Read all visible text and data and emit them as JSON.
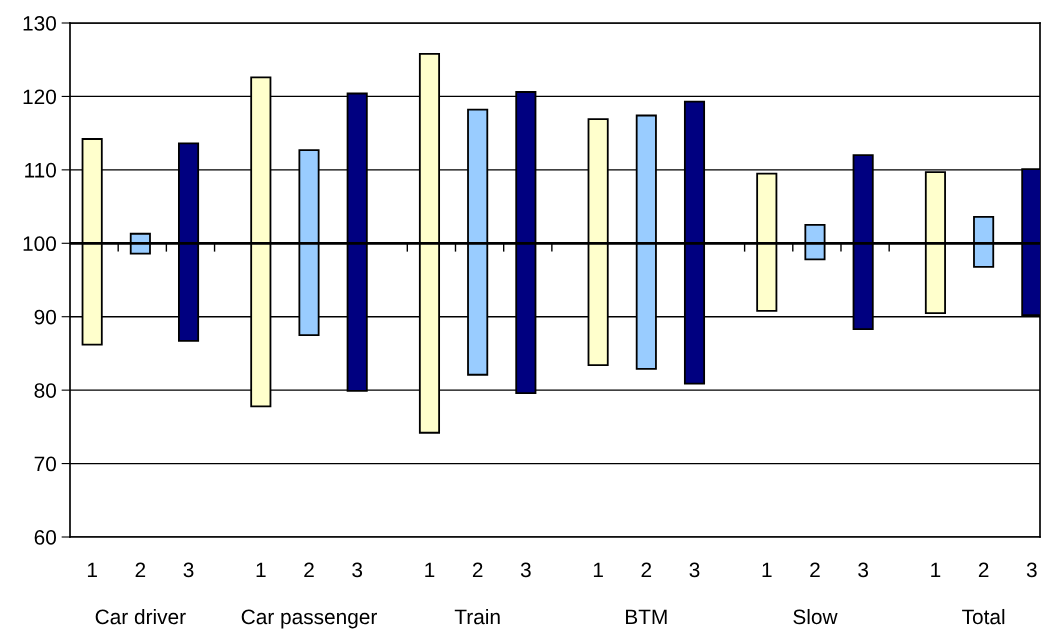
{
  "chart_data": {
    "type": "bar",
    "categories": [
      "1",
      "2",
      "3",
      "1",
      "2",
      "3",
      "1",
      "2",
      "3",
      "1",
      "2",
      "3",
      "1",
      "2",
      "3",
      "1",
      "2",
      "3"
    ],
    "base": [
      86.2,
      98.6,
      86.7,
      77.8,
      87.5,
      79.9,
      74.2,
      82.1,
      79.6,
      83.4,
      82.9,
      80.9,
      90.8,
      97.8,
      88.3,
      90.5,
      96.8,
      90.2
    ],
    "values": [
      28.0,
      2.7,
      26.9,
      44.8,
      25.2,
      40.5,
      51.6,
      36.1,
      41.0,
      33.5,
      34.5,
      38.4,
      18.7,
      4.7,
      23.7,
      19.2,
      6.8,
      19.9
    ],
    "colors": [
      "#ffffcc",
      "#99ccff",
      "#000080",
      "#ffffcc",
      "#99ccff",
      "#000080",
      "#ffffcc",
      "#99ccff",
      "#000080",
      "#ffffcc",
      "#99ccff",
      "#000080",
      "#ffffcc",
      "#99ccff",
      "#000080",
      "#ffffcc",
      "#99ccff",
      "#000080"
    ],
    "annotations": [
      "Car driver",
      "Car passenger",
      "Train",
      "BTM",
      "Slow",
      "Total"
    ],
    "ylim": [
      60,
      130
    ],
    "yticks": [
      60,
      70,
      80,
      90,
      100,
      110,
      120,
      130
    ],
    "ref_lines": [
      {
        "axis": "y",
        "value": 100,
        "color": "#000000"
      }
    ],
    "grid": "y"
  }
}
